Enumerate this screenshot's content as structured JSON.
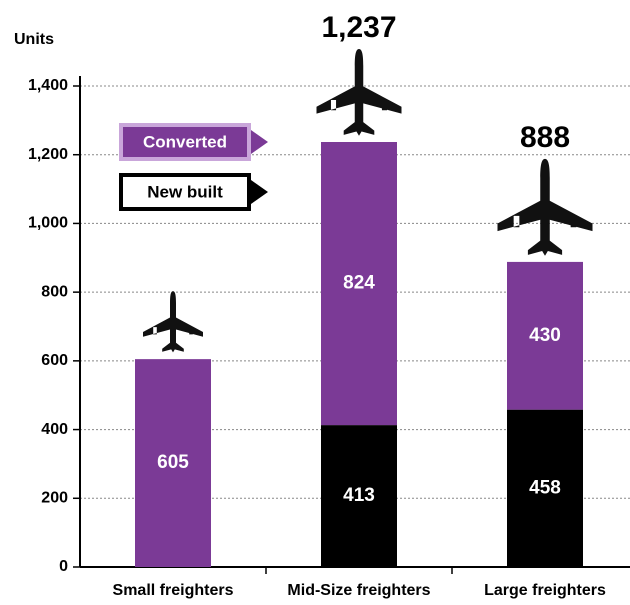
{
  "chart_data": {
    "type": "stacked_bar",
    "y_axis_label": "Units",
    "categories": [
      "Small freighters",
      "Mid-Size freighters",
      "Large freighters"
    ],
    "series": [
      {
        "name": "New built",
        "color": "#000000",
        "values": [
          null,
          413,
          458
        ]
      },
      {
        "name": "Converted",
        "color": "#7b3a96",
        "values": [
          605,
          824,
          430
        ]
      }
    ],
    "totals": {
      "values": [
        null,
        1237,
        888
      ],
      "value_labels": [
        null,
        "1,237",
        "888"
      ]
    },
    "ylim": [
      0,
      1400
    ],
    "yticks": [
      0,
      200,
      400,
      600,
      800,
      {
        "value": 1000,
        "label": "1,000"
      },
      {
        "value": 1200,
        "label": "1,200"
      },
      {
        "value": 1400,
        "label": "1,400"
      }
    ],
    "grid": true
  }
}
